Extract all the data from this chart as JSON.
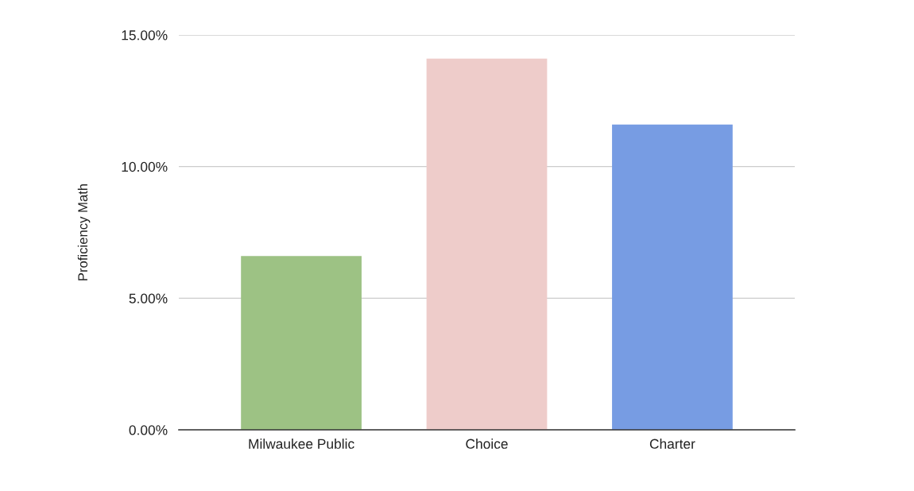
{
  "chart_data": {
    "type": "bar",
    "ylabel": "Proficiency Math",
    "categories": [
      "Milwaukee Public",
      "Choice",
      "Charter"
    ],
    "values": [
      6.6,
      14.1,
      11.6
    ],
    "colors": [
      "#9dc284",
      "#eeccca",
      "#779ce3"
    ],
    "ylim": [
      0,
      15
    ],
    "yticks": [
      {
        "value": 0,
        "label": "0.00%"
      },
      {
        "value": 5,
        "label": "5.00%"
      },
      {
        "value": 10,
        "label": "10.00%"
      },
      {
        "value": 15,
        "label": "15.00%"
      }
    ],
    "grid": "y"
  }
}
